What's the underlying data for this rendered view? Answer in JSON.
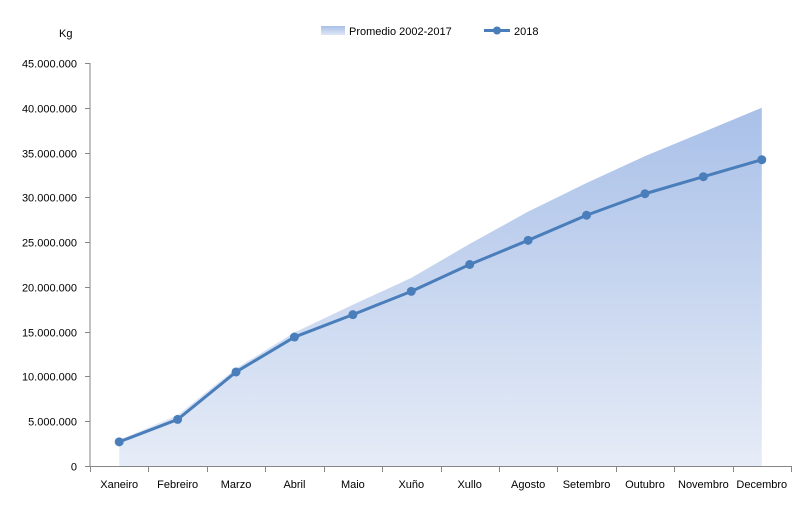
{
  "chart_data": {
    "type": "area",
    "ylabel": "Kg",
    "categories": [
      "Xaneiro",
      "Febreiro",
      "Marzo",
      "Abril",
      "Maio",
      "Xuño",
      "Xullo",
      "Agosto",
      "Setembro",
      "Outubro",
      "Novembro",
      "Decembro"
    ],
    "ylim": [
      0,
      45000000
    ],
    "yticks": [
      0,
      5000000,
      10000000,
      15000000,
      20000000,
      25000000,
      30000000,
      35000000,
      40000000,
      45000000
    ],
    "ytick_labels": [
      "0",
      "5.000.000",
      "10.000.000",
      "15.000.000",
      "20.000.000",
      "25.000.000",
      "30.000.000",
      "35.000.000",
      "40.000.000",
      "45.000.000"
    ],
    "legend_position": "top-center",
    "grid": false,
    "series": [
      {
        "name": "Promedio 2002-2017",
        "type": "area",
        "color": "#b4c7e7",
        "values": [
          2900000,
          5700000,
          10900000,
          14900000,
          18000000,
          21000000,
          24800000,
          28400000,
          31600000,
          34600000,
          37300000,
          40000000
        ]
      },
      {
        "name": "2018",
        "type": "line",
        "color": "#4a7ebb",
        "values": [
          2700000,
          5200000,
          10500000,
          14400000,
          16900000,
          19500000,
          22500000,
          25200000,
          28000000,
          30400000,
          32300000,
          34200000
        ]
      }
    ]
  }
}
